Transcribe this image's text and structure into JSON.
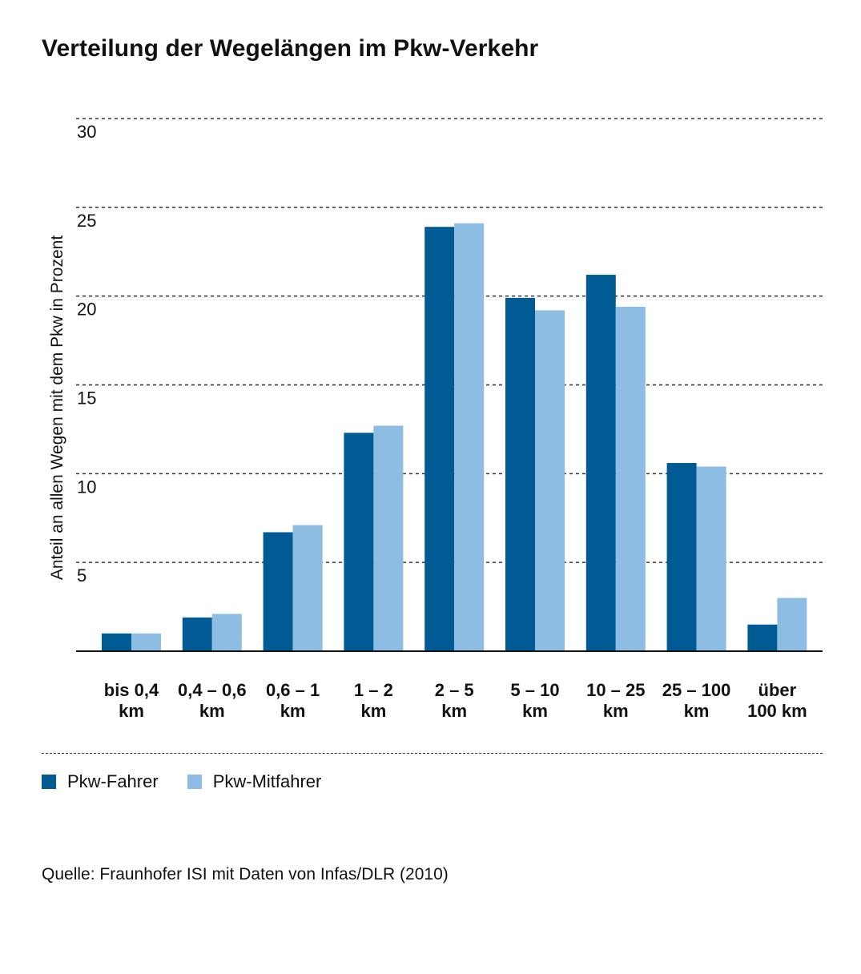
{
  "title": "Verteilung der Wegelängen im Pkw-Verkehr",
  "source": "Quelle: Fraunhofer ISI mit Daten von Infas/DLR (2010)",
  "legend": [
    {
      "label": "Pkw-Fahrer",
      "color": "#005a93"
    },
    {
      "label": "Pkw-Mitfahrer",
      "color": "#8ebde3"
    }
  ],
  "chart_data": {
    "type": "bar",
    "ylabel": "Anteil an allen Wegen mit dem Pkw in Prozent",
    "ylim": [
      0,
      30
    ],
    "yticks": [
      5,
      10,
      15,
      20,
      25,
      30
    ],
    "grid": true,
    "categories": [
      [
        "bis 0,4",
        "km"
      ],
      [
        "0,4 – 0,6",
        "km"
      ],
      [
        "0,6 – 1",
        "km"
      ],
      [
        "1 – 2",
        "km"
      ],
      [
        "2 – 5",
        "km"
      ],
      [
        "5 – 10",
        "km"
      ],
      [
        "10 – 25",
        "km"
      ],
      [
        "25 – 100",
        "km"
      ],
      [
        "über",
        "100 km"
      ]
    ],
    "series": [
      {
        "name": "Pkw-Fahrer",
        "color": "#005a93",
        "values": [
          1.0,
          1.9,
          6.7,
          12.3,
          23.9,
          19.9,
          21.2,
          10.6,
          1.5
        ]
      },
      {
        "name": "Pkw-Mitfahrer",
        "color": "#8ebde3",
        "values": [
          1.0,
          2.1,
          7.1,
          12.7,
          24.1,
          19.2,
          19.4,
          10.4,
          3.0
        ]
      }
    ]
  }
}
